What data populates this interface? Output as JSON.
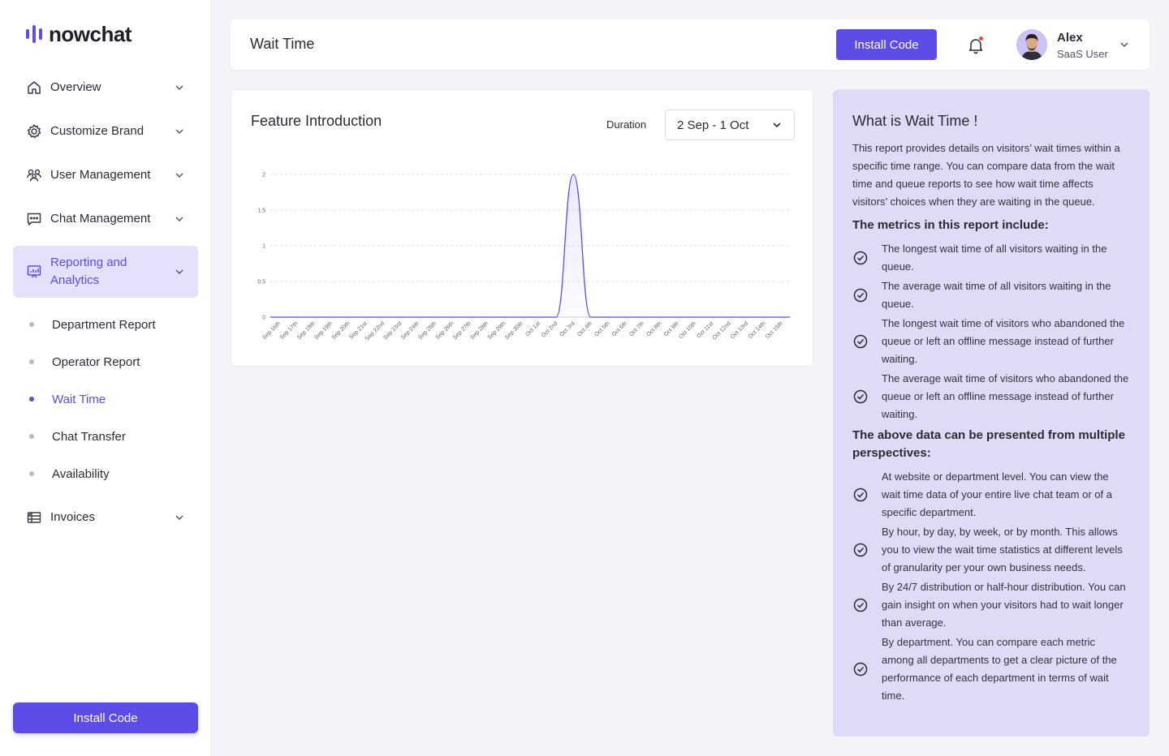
{
  "brand": {
    "name": "nowchat",
    "accent": "#5b4de6"
  },
  "sidebar": {
    "items": [
      {
        "label": "Overview",
        "icon": "home-icon"
      },
      {
        "label": "Customize Brand",
        "icon": "gear-icon"
      },
      {
        "label": "User Management",
        "icon": "users-icon"
      },
      {
        "label": "Chat Management",
        "icon": "chat-icon"
      },
      {
        "label": "Reporting and Analytics",
        "icon": "chart-icon",
        "active": true
      },
      {
        "label": "Invoices",
        "icon": "invoice-icon"
      }
    ],
    "subitems": [
      {
        "label": "Department Report"
      },
      {
        "label": "Operator Report"
      },
      {
        "label": "Wait Time",
        "active": true
      },
      {
        "label": "Chat Transfer"
      },
      {
        "label": "Availability"
      }
    ],
    "install_label": "Install Code"
  },
  "header": {
    "title": "Wait Time",
    "install_label": "Install Code",
    "user": {
      "name": "Alex",
      "role": "SaaS User"
    }
  },
  "card": {
    "title": "Feature Introduction",
    "duration_label": "Duration",
    "duration_value": "2 Sep - 1 Oct"
  },
  "chart_data": {
    "type": "area",
    "title": "",
    "xlabel": "",
    "ylabel": "",
    "ylim": [
      0,
      2
    ],
    "yticks": [
      "0",
      "0.5",
      "1",
      "1.5",
      "2"
    ],
    "grid": true,
    "color": "#5b4de6",
    "categories": [
      "Sep 16th",
      "Sep 17th",
      "Sep 18th",
      "Sep 19th",
      "Sep 20th",
      "Sep 21st",
      "Sep 22nd",
      "Sep 23rd",
      "Sep 24th",
      "Sep 25th",
      "Sep 26th",
      "Sep 27th",
      "Sep 28th",
      "Sep 29th",
      "Sep 30th",
      "Oct 1st",
      "Oct 2nd",
      "Oct 3rd",
      "Oct 4th",
      "Oct 5th",
      "Oct 6th",
      "Oct 7th",
      "Oct 8th",
      "Oct 9th",
      "Oct 10th",
      "Oct 11st",
      "Oct 12nd",
      "Oct 13rd",
      "Oct 14th",
      "Oct 15th"
    ],
    "values": [
      0,
      0,
      0,
      0,
      0,
      0,
      0,
      0,
      0,
      0,
      0,
      0,
      0,
      0,
      0,
      0,
      0,
      2,
      0,
      0,
      0,
      0,
      0,
      0,
      0,
      0,
      0,
      0,
      0,
      0
    ]
  },
  "info": {
    "title": "What is Wait Time !",
    "description": "This report provides details on visitors’ wait times within a specific time range. You can compare data from the wait time and queue reports to see how wait time affects visitors’ choices when they are waiting in the queue.",
    "metrics_heading": "The metrics in this report include:",
    "metrics": [
      "The longest wait time of all visitors waiting in the queue.",
      "The average wait time of all visitors waiting in the queue.",
      "The longest wait time of visitors who abandoned the queue or left an offline message instead of further waiting.",
      "The average wait time of visitors who abandoned the queue or left an offline message instead of further waiting."
    ],
    "perspectives_heading": "The above data can be presented from multiple perspectives:",
    "perspectives": [
      "At website or department level. You can view the wait time data of your entire live chat team or of a specific department.",
      "By hour, by day, by week, or by month. This allows you to view the wait time statistics at different levels of granularity per your own business needs.",
      "By 24/7 distribution or half-hour distribution. You can gain insight on when your visitors had to wait longer than average.",
      "By department. You can compare each metric among all departments to get a clear picture of the performance of each department in terms of wait time."
    ]
  }
}
